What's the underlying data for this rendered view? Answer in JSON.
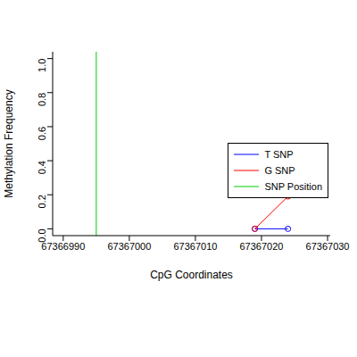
{
  "chart_data": {
    "type": "line",
    "x_label": "CpG Coordinates",
    "y_label": "Methylation Frequency",
    "x": [
      67367019,
      67367024
    ],
    "series": [
      {
        "name": "T SNP",
        "color": "#0000ff",
        "marker": "open_circle",
        "values": [
          0,
          0
        ]
      },
      {
        "name": "G SNP",
        "color": "#ff0000",
        "marker": "open_circle",
        "values": [
          0,
          0.19
        ]
      },
      {
        "name": "SNP Position",
        "color": "#00cc00",
        "type": "vline",
        "x": 67366995
      }
    ],
    "xlim": [
      67366988.4,
      67367030.4
    ],
    "xticks": [
      67366990,
      67367000,
      67367010,
      67367020,
      67367030
    ],
    "ylim": [
      -0.04,
      1.04
    ],
    "yticks": [
      {
        "value": 0,
        "label": "0.0"
      },
      0.2,
      0.4,
      0.6,
      0.8,
      {
        "value": 1,
        "label": "1.0"
      }
    ],
    "legend": "right",
    "grid": false
  }
}
